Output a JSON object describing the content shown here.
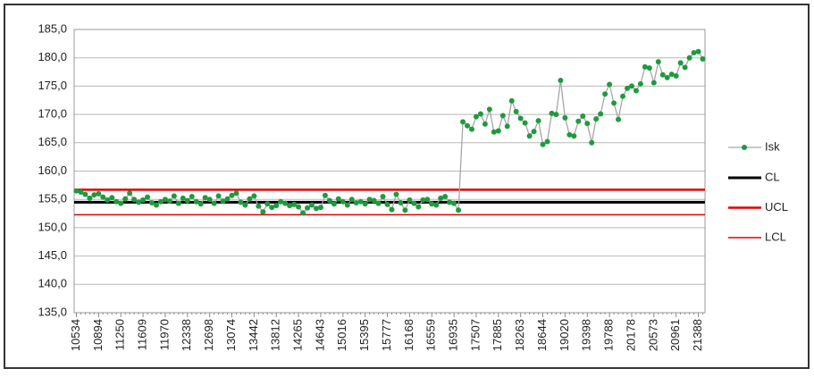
{
  "chart_data": {
    "type": "line",
    "categories": [
      "10534",
      null,
      null,
      null,
      null,
      "10894",
      null,
      null,
      null,
      null,
      "11250",
      null,
      null,
      null,
      null,
      "11609",
      null,
      null,
      null,
      null,
      "11970",
      null,
      null,
      null,
      null,
      "12338",
      null,
      null,
      null,
      null,
      "12698",
      null,
      null,
      null,
      null,
      "13074",
      null,
      null,
      null,
      null,
      "13442",
      null,
      null,
      null,
      null,
      "13812",
      null,
      null,
      null,
      null,
      "14265",
      null,
      null,
      null,
      null,
      "14643",
      null,
      null,
      null,
      null,
      "15016",
      null,
      null,
      null,
      null,
      "15395",
      null,
      null,
      null,
      null,
      "15777",
      null,
      null,
      null,
      null,
      "16168",
      null,
      null,
      null,
      null,
      "16559",
      null,
      null,
      null,
      null,
      "16935",
      null,
      null,
      null,
      null,
      "17507",
      null,
      null,
      null,
      null,
      "17885",
      null,
      null,
      null,
      null,
      "18263",
      null,
      null,
      null,
      null,
      "18644",
      null,
      null,
      null,
      null,
      "19020",
      null,
      null,
      null,
      null,
      "19398",
      null,
      null,
      null,
      null,
      "19788",
      null,
      null,
      null,
      null,
      "20178",
      null,
      null,
      null,
      null,
      "20573",
      null,
      null,
      null,
      null,
      "20961",
      null,
      null,
      null,
      null,
      "21388",
      null
    ],
    "series": [
      {
        "name": "Isk",
        "color": "#a6a6a6",
        "marker_color": "#1f9a3f",
        "values": [
          156.5,
          156.3,
          155.9,
          155.2,
          155.8,
          156.0,
          155.4,
          154.9,
          155.3,
          154.6,
          154.3,
          155.1,
          156.1,
          155.0,
          154.5,
          154.9,
          155.4,
          154.4,
          154.0,
          154.6,
          155.0,
          154.7,
          155.6,
          154.3,
          155.2,
          154.8,
          155.5,
          154.6,
          154.2,
          155.3,
          155.0,
          154.3,
          155.6,
          154.7,
          155.1,
          155.7,
          156.1,
          154.5,
          154.0,
          155.1,
          155.6,
          153.8,
          152.8,
          154.2,
          153.6,
          153.9,
          154.6,
          154.3,
          153.9,
          154.1,
          153.7,
          152.6,
          153.5,
          154.0,
          153.4,
          153.6,
          155.7,
          154.8,
          154.2,
          155.1,
          154.6,
          154.0,
          155.0,
          154.4,
          154.6,
          154.2,
          155.0,
          154.8,
          154.3,
          155.5,
          154.1,
          153.2,
          155.9,
          154.4,
          153.1,
          154.9,
          154.3,
          153.7,
          154.9,
          155.0,
          154.2,
          154.0,
          155.2,
          155.5,
          154.5,
          154.3,
          153.1,
          168.7,
          168.0,
          167.4,
          169.6,
          170.1,
          168.3,
          170.9,
          166.9,
          167.1,
          169.8,
          167.9,
          172.4,
          170.5,
          169.3,
          168.5,
          166.2,
          167.0,
          168.9,
          164.7,
          165.2,
          170.2,
          170.0,
          176.0,
          169.4,
          166.4,
          166.2,
          168.8,
          169.7,
          168.4,
          165.0,
          169.2,
          170.1,
          173.6,
          175.3,
          172.0,
          169.1,
          173.2,
          174.6,
          175.0,
          174.2,
          175.4,
          178.4,
          178.2,
          175.6,
          179.3,
          177.0,
          176.5,
          177.1,
          176.8,
          179.1,
          178.3,
          180.0,
          180.9,
          181.1,
          179.8
        ]
      }
    ],
    "reference_lines": [
      {
        "name": "CL",
        "value": 154.5,
        "color": "#000000",
        "width": 3
      },
      {
        "name": "UCL",
        "value": 156.7,
        "color": "#e00000",
        "width": 2.5
      },
      {
        "name": "LCL",
        "value": 152.3,
        "color": "#e00000",
        "width": 1.5
      }
    ],
    "ylim": [
      135,
      185
    ],
    "yticks": [
      {
        "value": 135,
        "label": "135,0"
      },
      {
        "value": 140,
        "label": "140,0"
      },
      {
        "value": 145,
        "label": "145,0"
      },
      {
        "value": 150,
        "label": "150,0"
      },
      {
        "value": 155,
        "label": "155,0"
      },
      {
        "value": 160,
        "label": "160,0"
      },
      {
        "value": 165,
        "label": "165,0"
      },
      {
        "value": 170,
        "label": "170,0"
      },
      {
        "value": 175,
        "label": "175,0"
      },
      {
        "value": 180,
        "label": "180,0"
      },
      {
        "value": 185,
        "label": "185,0"
      }
    ],
    "grid": true
  }
}
